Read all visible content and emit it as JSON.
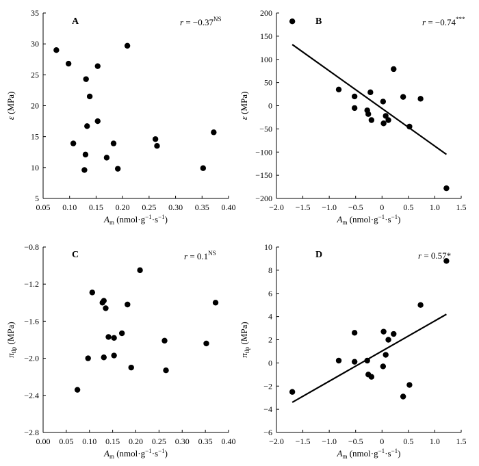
{
  "chart_data": [
    {
      "panel": "A",
      "type": "scatter",
      "xlabel": {
        "main": "A",
        "sub": "m",
        "unit": " (nmol·g",
        "exp": "−1",
        "mid": "·s",
        "exp2": "−1",
        "end": ")"
      },
      "ylabel": {
        "main": "ε",
        "unit": " (MPa)"
      },
      "correlation": {
        "text": "r = −0.37",
        "sup": "NS"
      },
      "xlim": [
        0.05,
        0.4
      ],
      "ylim": [
        5,
        35
      ],
      "xticks": [
        "0.05",
        "0.10",
        "0.15",
        "0.20",
        "0.25",
        "0.30",
        "0.35",
        "0.40"
      ],
      "yticks": [
        "5",
        "10",
        "15",
        "20",
        "25",
        "30",
        "35"
      ],
      "points": [
        [
          0.075,
          29.0
        ],
        [
          0.098,
          26.8
        ],
        [
          0.107,
          13.9
        ],
        [
          0.128,
          9.6
        ],
        [
          0.13,
          12.1
        ],
        [
          0.131,
          24.3
        ],
        [
          0.133,
          16.7
        ],
        [
          0.138,
          21.5
        ],
        [
          0.153,
          26.4
        ],
        [
          0.153,
          17.5
        ],
        [
          0.17,
          11.6
        ],
        [
          0.183,
          13.9
        ],
        [
          0.191,
          9.8
        ],
        [
          0.209,
          29.7
        ],
        [
          0.262,
          14.6
        ],
        [
          0.265,
          13.5
        ],
        [
          0.352,
          9.9
        ],
        [
          0.372,
          15.7
        ]
      ]
    },
    {
      "panel": "B",
      "type": "scatter",
      "xlabel": {
        "main": "A",
        "sub": "m",
        "unit": " (nmol·g",
        "exp": "−1",
        "mid": "·s",
        "exp2": "−1",
        "end": ")"
      },
      "ylabel": {
        "main": "ε",
        "unit": " (MPa)"
      },
      "correlation": {
        "text": "r = −0.74",
        "sup": "***"
      },
      "xlim": [
        -2.0,
        1.5
      ],
      "ylim": [
        -200,
        200
      ],
      "xticks": [
        "−2.0",
        "−1.5",
        "−1.0",
        "−0.5",
        "0",
        "0.5",
        "1.0",
        "1.5"
      ],
      "yticks": [
        "−200",
        "−150",
        "−100",
        "−50",
        "0",
        "50",
        "100",
        "150",
        "200"
      ],
      "points": [
        [
          -1.7,
          182
        ],
        [
          -0.82,
          35
        ],
        [
          -0.52,
          20
        ],
        [
          -0.52,
          -5
        ],
        [
          -0.28,
          -10
        ],
        [
          -0.26,
          -18
        ],
        [
          -0.22,
          29
        ],
        [
          -0.2,
          -31
        ],
        [
          0.02,
          9
        ],
        [
          0.03,
          -38
        ],
        [
          0.07,
          -22
        ],
        [
          0.12,
          -31
        ],
        [
          0.22,
          79
        ],
        [
          0.4,
          19
        ],
        [
          0.52,
          -45
        ],
        [
          0.73,
          15
        ],
        [
          1.22,
          -178
        ]
      ],
      "fit": {
        "x": [
          -1.7,
          1.22
        ],
        "y": [
          132,
          -105
        ]
      }
    },
    {
      "panel": "C",
      "type": "scatter",
      "xlabel": {
        "main": "A",
        "sub": "m",
        "unit": " (nmol·g",
        "exp": "−1",
        "mid": "·s",
        "exp2": "−1",
        "end": ")"
      },
      "ylabel": {
        "main": "π",
        "sub": "tlp",
        "unit": " (MPa)"
      },
      "correlation": {
        "text": "r = 0.1",
        "sup": "NS"
      },
      "xlim": [
        0.0,
        0.4
      ],
      "ylim": [
        -2.8,
        -0.8
      ],
      "xticks": [
        "0.00",
        "0.05",
        "0.10",
        "0.15",
        "0.20",
        "0.25",
        "0.30",
        "0.35",
        "0.40"
      ],
      "yticks": [
        "−2.8",
        "−2.4",
        "−2.0",
        "−1.6",
        "−1.2",
        "−0.8"
      ],
      "points": [
        [
          0.074,
          -2.34
        ],
        [
          0.097,
          -2.0
        ],
        [
          0.106,
          -1.29
        ],
        [
          0.128,
          -1.4
        ],
        [
          0.131,
          -1.38
        ],
        [
          0.131,
          -1.99
        ],
        [
          0.135,
          -1.46
        ],
        [
          0.141,
          -1.77
        ],
        [
          0.153,
          -1.78
        ],
        [
          0.153,
          -1.97
        ],
        [
          0.17,
          -1.73
        ],
        [
          0.182,
          -1.42
        ],
        [
          0.19,
          -2.1
        ],
        [
          0.209,
          -1.05
        ],
        [
          0.262,
          -1.81
        ],
        [
          0.265,
          -2.13
        ],
        [
          0.352,
          -1.84
        ],
        [
          0.372,
          -1.4
        ]
      ]
    },
    {
      "panel": "D",
      "type": "scatter",
      "xlabel": {
        "main": "A",
        "sub": "m",
        "unit": " (nmol·g",
        "exp": "−1",
        "mid": "·s",
        "exp2": "−1",
        "end": ")"
      },
      "ylabel": {
        "main": "π",
        "sub": "tlp",
        "unit": " (MPa)"
      },
      "correlation": {
        "text": "r = 0.57*",
        "sup": ""
      },
      "xlim": [
        -2.0,
        1.5
      ],
      "ylim": [
        -6,
        10
      ],
      "xticks": [
        "−2.0",
        "−1.5",
        "−1.0",
        "−0.5",
        "0",
        "0.5",
        "1.0",
        "1.5"
      ],
      "yticks": [
        "−6",
        "−4",
        "−2",
        "0",
        "2",
        "4",
        "6",
        "8",
        "10"
      ],
      "points": [
        [
          -1.7,
          -2.5
        ],
        [
          -0.82,
          0.2
        ],
        [
          -0.52,
          2.6
        ],
        [
          -0.52,
          0.1
        ],
        [
          -0.28,
          0.2
        ],
        [
          -0.26,
          -1.0
        ],
        [
          -0.2,
          -1.2
        ],
        [
          0.02,
          -0.3
        ],
        [
          0.03,
          2.7
        ],
        [
          0.07,
          0.7
        ],
        [
          0.12,
          2.0
        ],
        [
          0.22,
          2.5
        ],
        [
          0.4,
          -2.9
        ],
        [
          0.52,
          -1.9
        ],
        [
          0.73,
          5.0
        ],
        [
          1.22,
          8.8
        ]
      ],
      "fit": {
        "x": [
          -1.7,
          1.22
        ],
        "y": [
          -3.4,
          4.2
        ]
      }
    }
  ]
}
